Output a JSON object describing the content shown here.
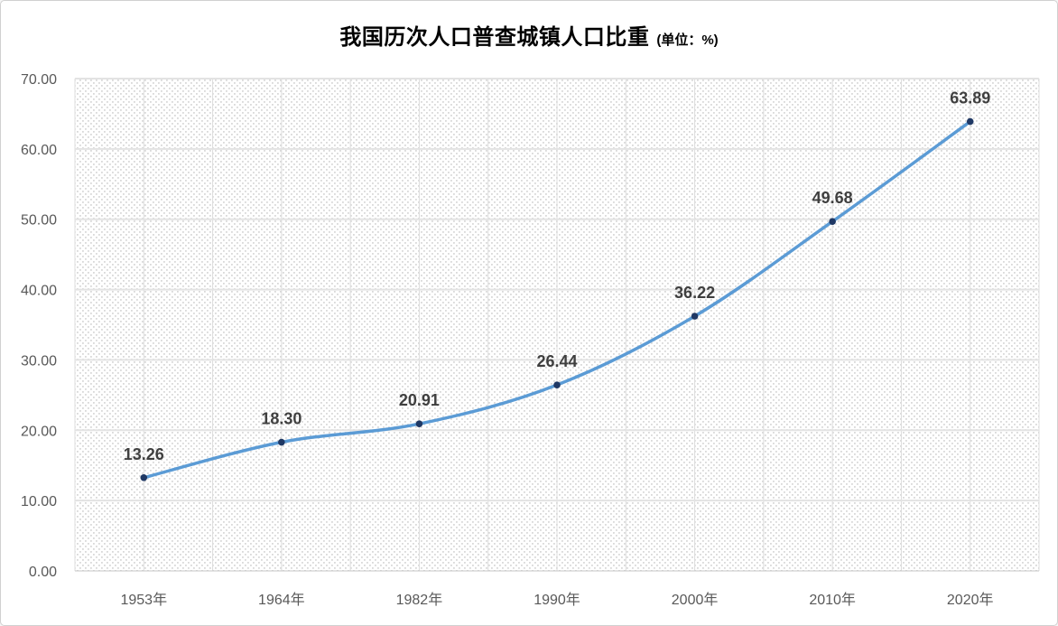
{
  "title": {
    "text": "我国历次人口普查城镇人口比重",
    "unit": "(单位：%)"
  },
  "chart_data": {
    "type": "line",
    "title": "我国历次人口普查城镇人口比重",
    "subtitle": "(单位：%)",
    "categories": [
      "1953年",
      "1964年",
      "1982年",
      "1990年",
      "2000年",
      "2010年",
      "2020年"
    ],
    "values": [
      13.26,
      18.3,
      20.91,
      26.44,
      36.22,
      49.68,
      63.89
    ],
    "data_labels": [
      "13.26",
      "18.30",
      "20.91",
      "26.44",
      "36.22",
      "49.68",
      "63.89"
    ],
    "xlabel": "",
    "ylabel": "",
    "ylim": [
      0,
      70
    ],
    "ytick_step": 10,
    "ytick_labels": [
      "0.00",
      "10.00",
      "20.00",
      "30.00",
      "40.00",
      "50.00",
      "60.00",
      "70.00"
    ],
    "grid": true,
    "legend": "none",
    "plot_fill": "diagonal-dot-hatch",
    "colors": {
      "line": "#5b9bd5",
      "marker": "#1f3864",
      "data_label": "#3f3f3f",
      "axis_label": "#595959",
      "h_gridline": "#e3e3e3",
      "v_gridline": "#dcdcdc",
      "axis_line": "#c4c4c4",
      "hatch_dot": "#d9d9d9",
      "canvas_border": "#d0d0d0",
      "background": "#ffffff"
    }
  }
}
